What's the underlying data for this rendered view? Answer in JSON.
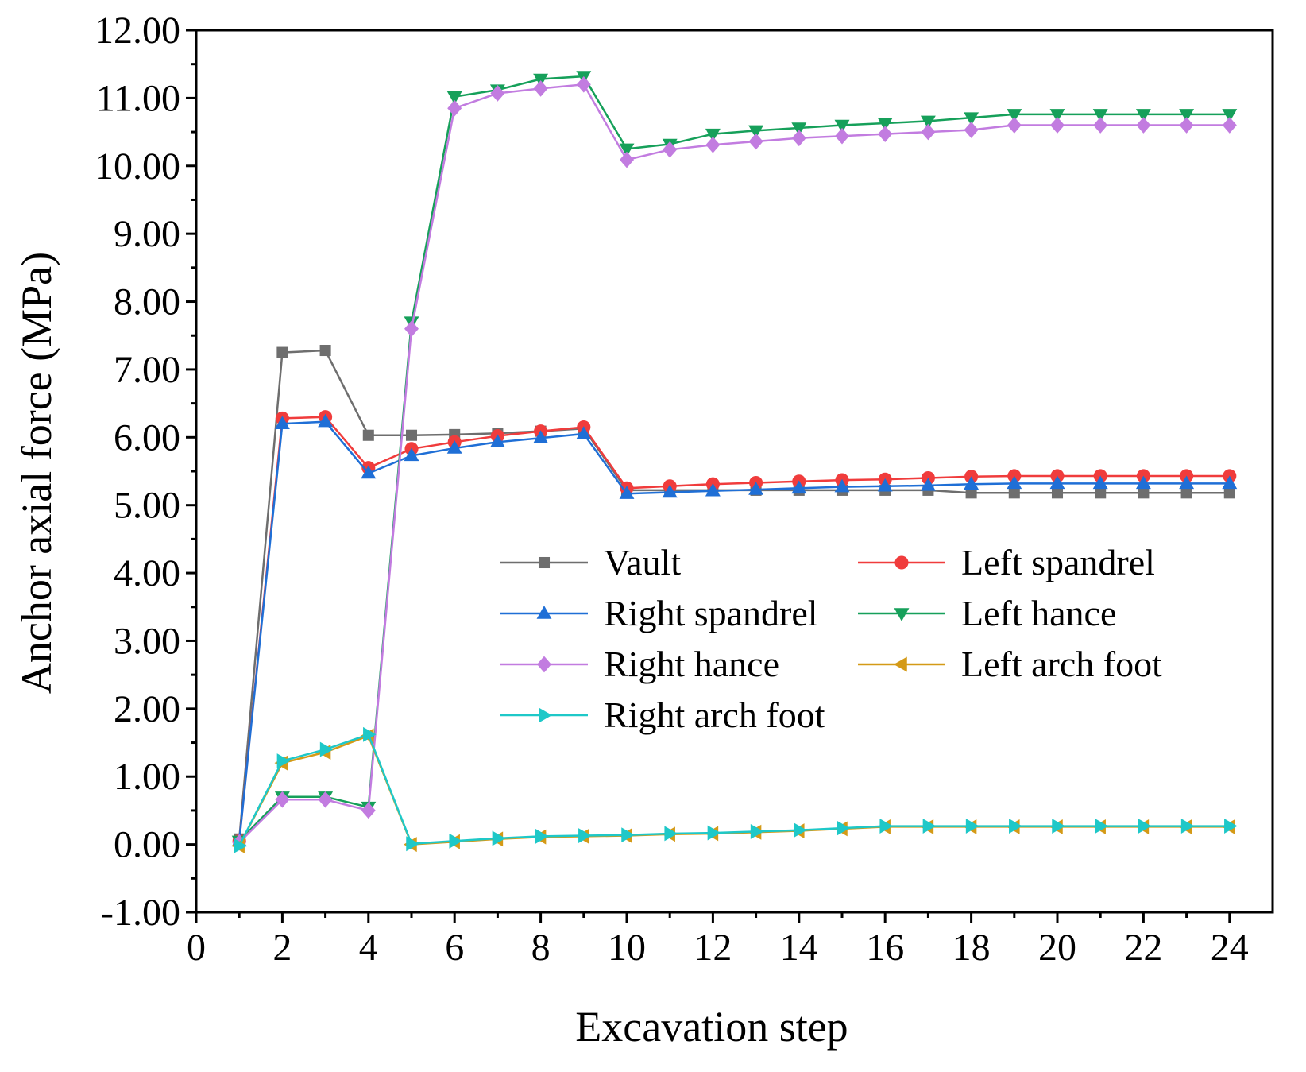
{
  "chart_data": {
    "type": "line",
    "title": "",
    "xlabel": "Excavation step",
    "ylabel": "Anchor axial force (MPa)",
    "xlim": [
      0,
      25
    ],
    "ylim": [
      -1,
      12
    ],
    "xticks": [
      0,
      2,
      4,
      6,
      8,
      10,
      12,
      14,
      16,
      18,
      20,
      22,
      24
    ],
    "xtick_labels": [
      "0",
      "2",
      "4",
      "6",
      "8",
      "10",
      "12",
      "14",
      "16",
      "18",
      "20",
      "22",
      "24"
    ],
    "yticks": [
      -1,
      0,
      1,
      2,
      3,
      4,
      5,
      6,
      7,
      8,
      9,
      10,
      11,
      12
    ],
    "ytick_labels": [
      "-1.00",
      "0.00",
      "1.00",
      "2.00",
      "3.00",
      "4.00",
      "5.00",
      "6.00",
      "7.00",
      "8.00",
      "9.00",
      "10.00",
      "11.00",
      "12.00"
    ],
    "grid": false,
    "legend_position": "center-right",
    "x": [
      1,
      2,
      3,
      4,
      5,
      6,
      7,
      8,
      9,
      10,
      11,
      12,
      13,
      14,
      15,
      16,
      17,
      18,
      19,
      20,
      21,
      22,
      23,
      24
    ],
    "series": [
      {
        "name": "Vault",
        "color": "#6e6e6e",
        "marker": "square",
        "values": [
          0.08,
          7.25,
          7.28,
          6.03,
          6.03,
          6.04,
          6.06,
          6.09,
          6.13,
          5.22,
          5.22,
          5.22,
          5.22,
          5.22,
          5.22,
          5.22,
          5.22,
          5.18,
          5.18,
          5.18,
          5.18,
          5.18,
          5.18,
          5.18
        ]
      },
      {
        "name": "Left spandrel",
        "color": "#f03c3c",
        "marker": "circle",
        "values": [
          0.05,
          6.28,
          6.3,
          5.55,
          5.83,
          5.93,
          6.02,
          6.09,
          6.15,
          5.25,
          5.28,
          5.31,
          5.33,
          5.35,
          5.37,
          5.38,
          5.4,
          5.42,
          5.43,
          5.43,
          5.43,
          5.43,
          5.43,
          5.43
        ]
      },
      {
        "name": "Right spandrel",
        "color": "#1f6fd6",
        "marker": "triangle-up",
        "values": [
          0.05,
          6.2,
          6.23,
          5.47,
          5.73,
          5.84,
          5.93,
          5.99,
          6.05,
          5.17,
          5.19,
          5.21,
          5.23,
          5.25,
          5.27,
          5.28,
          5.29,
          5.31,
          5.32,
          5.32,
          5.32,
          5.32,
          5.32,
          5.32
        ]
      },
      {
        "name": "Left hance",
        "color": "#16a05a",
        "marker": "triangle-down",
        "values": [
          0.05,
          0.7,
          0.7,
          0.55,
          7.7,
          11.02,
          11.12,
          11.28,
          11.32,
          10.25,
          10.32,
          10.47,
          10.52,
          10.56,
          10.6,
          10.63,
          10.66,
          10.71,
          10.76,
          10.76,
          10.76,
          10.76,
          10.76,
          10.76
        ]
      },
      {
        "name": "Right hance",
        "color": "#c27ce0",
        "marker": "diamond",
        "values": [
          0.03,
          0.66,
          0.66,
          0.5,
          7.6,
          10.85,
          11.07,
          11.14,
          11.2,
          10.09,
          10.24,
          10.31,
          10.36,
          10.41,
          10.44,
          10.47,
          10.5,
          10.53,
          10.6,
          10.6,
          10.6,
          10.6,
          10.6,
          10.6
        ]
      },
      {
        "name": "Left arch foot",
        "color": "#d49a17",
        "marker": "triangle-left",
        "values": [
          -0.02,
          1.2,
          1.36,
          1.6,
          0.0,
          0.04,
          0.08,
          0.11,
          0.12,
          0.13,
          0.15,
          0.16,
          0.18,
          0.2,
          0.23,
          0.26,
          0.26,
          0.26,
          0.26,
          0.26,
          0.26,
          0.26,
          0.26,
          0.26
        ]
      },
      {
        "name": "Right arch foot",
        "color": "#1ec8c8",
        "marker": "triangle-right",
        "values": [
          -0.02,
          1.23,
          1.4,
          1.62,
          0.01,
          0.05,
          0.09,
          0.12,
          0.13,
          0.14,
          0.16,
          0.17,
          0.19,
          0.21,
          0.24,
          0.27,
          0.27,
          0.27,
          0.27,
          0.27,
          0.27,
          0.27,
          0.27,
          0.27
        ]
      }
    ]
  }
}
